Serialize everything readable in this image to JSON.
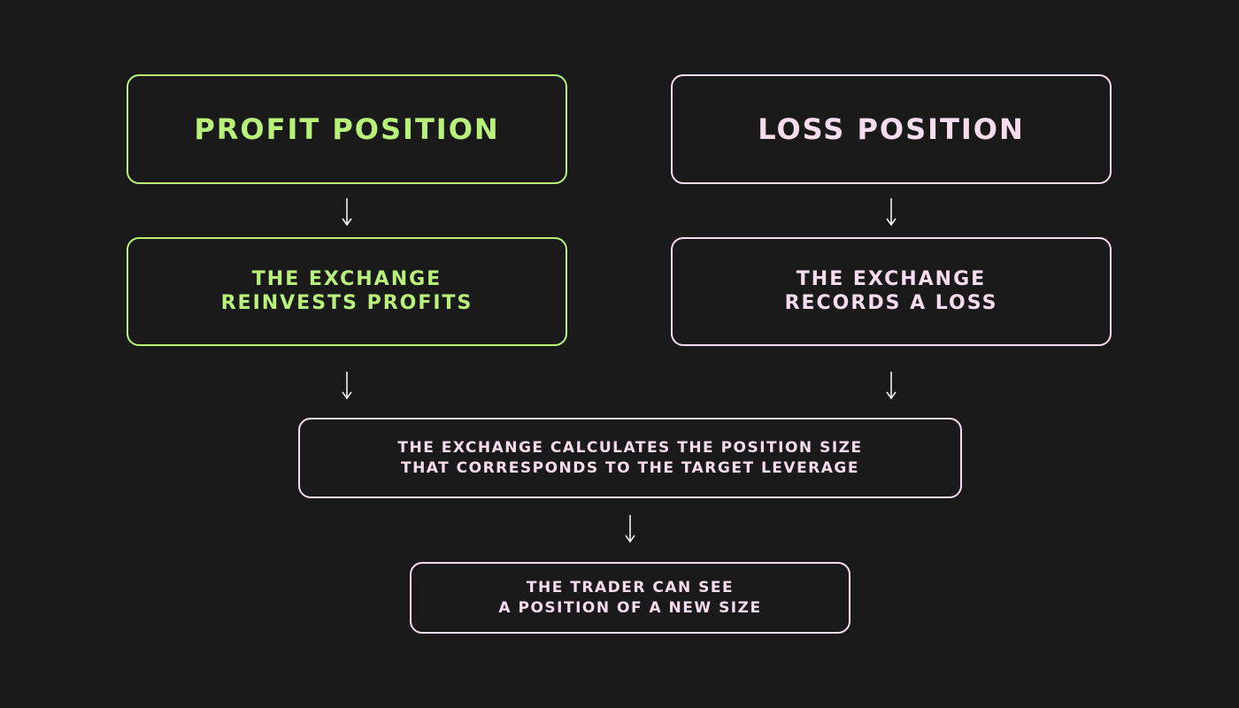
{
  "profit": {
    "title": "PROFIT POSITION",
    "step_line1": "THE EXCHANGE",
    "step_line2": "REINVESTS PROFITS"
  },
  "loss": {
    "title": "LOSS POSITION",
    "step_line1": "THE EXCHANGE",
    "step_line2": "RECORDS A LOSS"
  },
  "calculate": {
    "line1": "THE EXCHANGE CALCULATES THE POSITION SIZE",
    "line2": "THAT CORRESPONDS TO THE TARGET LEVERAGE"
  },
  "result": {
    "line1": "THE TRADER CAN SEE",
    "line2": "A POSITION OF A NEW SIZE"
  },
  "colors": {
    "background": "#1a1a1a",
    "profit": "#b9f27a",
    "loss": "#f7dcee",
    "arrow": "#f2f2f2"
  }
}
